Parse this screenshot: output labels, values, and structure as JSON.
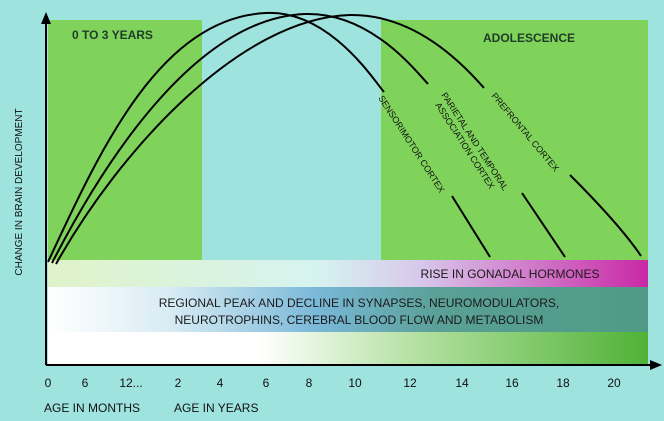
{
  "zones": {
    "early_label": "0 TO 3 YEARS",
    "adolescence_label": "ADOLESCENCE"
  },
  "axes": {
    "y_label": "CHANGE IN BRAIN DEVELOPMENT",
    "x_label_months": "AGE IN MONTHS",
    "x_label_years": "AGE IN YEARS",
    "ticks": [
      "0",
      "6",
      "12...",
      "2",
      "4",
      "6",
      "8",
      "10",
      "12",
      "14",
      "16",
      "18",
      "20"
    ]
  },
  "curves": [
    {
      "name": "SENSORIMOTOR CORTEX",
      "peak_age_years": 6
    },
    {
      "name": "PARIETAL AND TEMPORAL ASSOCIATION CORTEX",
      "line1": "PARIETAL AND TEMPORAL",
      "line2": "ASSOCIATION CORTEX",
      "peak_age_years": 8
    },
    {
      "name": "PREFRONTAL CORTEX",
      "peak_age_years": 10
    }
  ],
  "bands": {
    "hormones": "RISE IN GONADAL HORMONES",
    "synapses_line1": "REGIONAL PEAK AND DECLINE IN SYNAPSES, NEUROMODULATORS,",
    "synapses_line2": "NEUROTROPHINS, CEREBRAL BLOOD FLOW AND METABOLISM"
  },
  "colors": {
    "background": "#9fe3df",
    "green_zone": "#7fd35a",
    "hormone_band": "#c928a6",
    "synapse_band": "#4f9a86",
    "ramp_band": "#57b83f",
    "curve": "#000000"
  }
}
